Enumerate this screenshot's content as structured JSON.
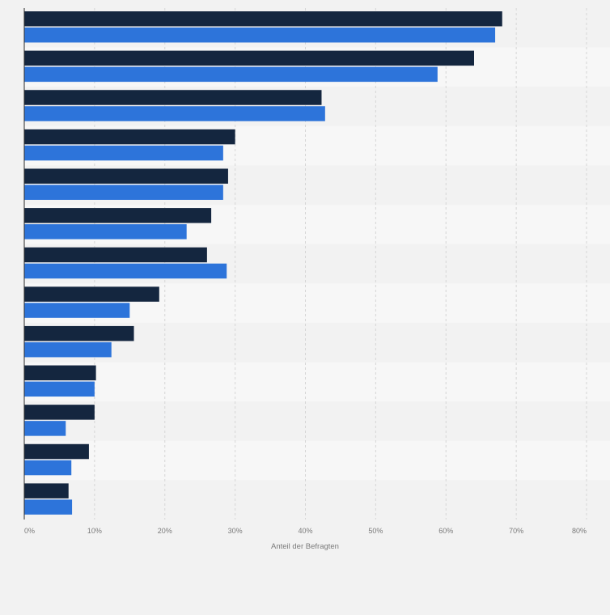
{
  "chart_data": {
    "type": "bar",
    "orientation": "horizontal",
    "xlabel": "Anteil der Befragten",
    "ylabel": "",
    "xlim": [
      0,
      80
    ],
    "x_ticks": [
      "0%",
      "10%",
      "20%",
      "30%",
      "40%",
      "50%",
      "60%",
      "70%",
      "80%"
    ],
    "grid": true,
    "categories": [
      "",
      "",
      "",
      "",
      "",
      "",
      "",
      "",
      "",
      "",
      "",
      "",
      ""
    ],
    "series": [
      {
        "color": "#14263f",
        "values": [
          68,
          64,
          42.3,
          30,
          29,
          26.6,
          26,
          19.2,
          15.6,
          10.2,
          10,
          9.2,
          6.3
        ]
      },
      {
        "color": "#2d74da",
        "values": [
          67,
          58.8,
          42.8,
          28.3,
          28.3,
          23.1,
          28.8,
          15,
          12.4,
          10,
          5.9,
          6.7,
          6.8
        ]
      }
    ]
  }
}
